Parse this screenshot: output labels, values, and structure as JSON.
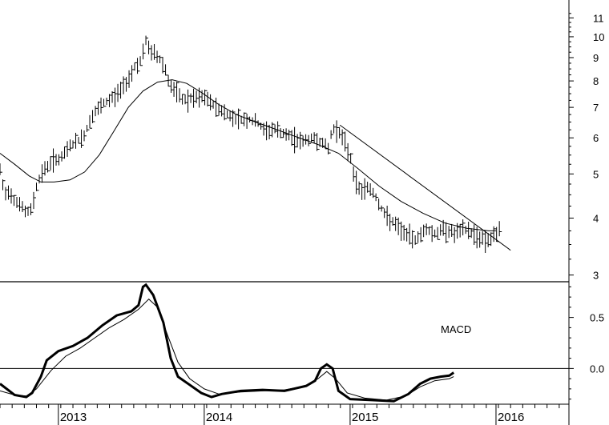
{
  "chart_data": [
    {
      "type": "line",
      "panel": "price",
      "scale": "log",
      "ylim": [
        2.9,
        11.8
      ],
      "y_ticks": [
        3,
        4,
        5,
        6,
        7,
        8,
        9,
        10,
        11
      ],
      "y_tick_labels": [
        "3",
        "4",
        "5",
        "6",
        "7",
        "8",
        "9",
        "10",
        "11"
      ],
      "x_labels": [
        "2013",
        "2014",
        "2015",
        "2016"
      ],
      "x_label_dates": [
        2013.0,
        2014.0,
        2015.0,
        2016.0
      ],
      "xlim": [
        2012.6,
        2016.5
      ],
      "colors": {
        "line": "#000000",
        "background": "#ffffff"
      },
      "series": [
        {
          "kind": "weekly-bars",
          "anchors": [
            [
              2012.6,
              5.1
            ],
            [
              2012.63,
              4.5
            ],
            [
              2012.66,
              4.6
            ],
            [
              2012.7,
              4.4
            ],
            [
              2012.74,
              4.3
            ],
            [
              2012.78,
              4.1
            ],
            [
              2012.82,
              4.2
            ],
            [
              2012.84,
              4.6
            ],
            [
              2012.88,
              5.0
            ],
            [
              2012.92,
              5.2
            ],
            [
              2012.97,
              5.4
            ],
            [
              2013.02,
              5.4
            ],
            [
              2013.08,
              5.8
            ],
            [
              2013.13,
              5.9
            ],
            [
              2013.18,
              6.1
            ],
            [
              2013.23,
              6.7
            ],
            [
              2013.28,
              7.0
            ],
            [
              2013.33,
              7.2
            ],
            [
              2013.38,
              7.4
            ],
            [
              2013.43,
              7.7
            ],
            [
              2013.48,
              8.1
            ],
            [
              2013.52,
              8.6
            ],
            [
              2013.57,
              8.9
            ],
            [
              2013.6,
              9.8
            ],
            [
              2013.63,
              9.3
            ],
            [
              2013.66,
              9.2
            ],
            [
              2013.7,
              8.9
            ],
            [
              2013.73,
              8.6
            ],
            [
              2013.76,
              7.9
            ],
            [
              2013.8,
              7.6
            ],
            [
              2013.85,
              7.3
            ],
            [
              2013.9,
              7.3
            ],
            [
              2014.0,
              7.4
            ],
            [
              2014.06,
              7.1
            ],
            [
              2014.12,
              6.9
            ],
            [
              2014.18,
              6.7
            ],
            [
              2014.25,
              6.6
            ],
            [
              2014.3,
              6.6
            ],
            [
              2014.36,
              6.5
            ],
            [
              2014.42,
              6.2
            ],
            [
              2014.48,
              6.3
            ],
            [
              2014.55,
              6.1
            ],
            [
              2014.62,
              6.0
            ],
            [
              2014.68,
              5.9
            ],
            [
              2014.74,
              6.0
            ],
            [
              2014.8,
              5.9
            ],
            [
              2014.85,
              5.7
            ],
            [
              2014.88,
              6.3
            ],
            [
              2014.91,
              6.3
            ],
            [
              2014.95,
              6.0
            ],
            [
              2015.0,
              5.5
            ],
            [
              2015.03,
              4.9
            ],
            [
              2015.07,
              4.6
            ],
            [
              2015.12,
              4.7
            ],
            [
              2015.17,
              4.5
            ],
            [
              2015.23,
              4.1
            ],
            [
              2015.3,
              3.9
            ],
            [
              2015.38,
              3.7
            ],
            [
              2015.45,
              3.6
            ],
            [
              2015.52,
              3.8
            ],
            [
              2015.58,
              3.7
            ],
            [
              2015.65,
              3.8
            ],
            [
              2015.72,
              3.7
            ],
            [
              2015.78,
              3.8
            ],
            [
              2015.85,
              3.7
            ],
            [
              2015.91,
              3.6
            ],
            [
              2015.96,
              3.6
            ],
            [
              2016.01,
              3.7
            ],
            [
              2016.03,
              3.9
            ]
          ]
        },
        {
          "kind": "moving-average-long",
          "anchors": [
            [
              2012.6,
              5.55
            ],
            [
              2012.7,
              5.25
            ],
            [
              2012.8,
              4.95
            ],
            [
              2012.88,
              4.8
            ],
            [
              2012.97,
              4.8
            ],
            [
              2013.08,
              4.85
            ],
            [
              2013.18,
              5.05
            ],
            [
              2013.28,
              5.5
            ],
            [
              2013.38,
              6.2
            ],
            [
              2013.48,
              7.0
            ],
            [
              2013.58,
              7.6
            ],
            [
              2013.68,
              7.95
            ],
            [
              2013.78,
              8.05
            ],
            [
              2013.88,
              7.9
            ],
            [
              2013.98,
              7.55
            ],
            [
              2014.1,
              7.1
            ],
            [
              2014.22,
              6.75
            ],
            [
              2014.35,
              6.5
            ],
            [
              2014.5,
              6.25
            ],
            [
              2014.62,
              6.05
            ],
            [
              2014.78,
              5.8
            ],
            [
              2014.92,
              5.55
            ],
            [
              2015.05,
              5.15
            ],
            [
              2015.2,
              4.7
            ],
            [
              2015.35,
              4.35
            ],
            [
              2015.5,
              4.1
            ],
            [
              2015.65,
              3.9
            ],
            [
              2015.8,
              3.8
            ],
            [
              2015.95,
              3.75
            ],
            [
              2016.0,
              3.75
            ]
          ]
        },
        {
          "kind": "trendline",
          "anchors": [
            [
              2014.93,
              6.4
            ],
            [
              2016.1,
              3.4
            ]
          ]
        }
      ]
    },
    {
      "type": "line",
      "panel": "indicator",
      "title": "MACD",
      "ylim": [
        -0.35,
        0.85
      ],
      "y_ticks": [
        0.0,
        0.5
      ],
      "y_tick_labels": [
        "0.0",
        "0.5"
      ],
      "xlim": [
        2012.6,
        2016.5
      ],
      "series": [
        {
          "kind": "macd-line",
          "anchors": [
            [
              2012.6,
              -0.15
            ],
            [
              2012.7,
              -0.26
            ],
            [
              2012.78,
              -0.28
            ],
            [
              2012.82,
              -0.24
            ],
            [
              2012.88,
              -0.08
            ],
            [
              2012.92,
              0.08
            ],
            [
              2013.0,
              0.17
            ],
            [
              2013.1,
              0.22
            ],
            [
              2013.2,
              0.3
            ],
            [
              2013.3,
              0.42
            ],
            [
              2013.4,
              0.52
            ],
            [
              2013.5,
              0.56
            ],
            [
              2013.55,
              0.62
            ],
            [
              2013.58,
              0.8
            ],
            [
              2013.6,
              0.82
            ],
            [
              2013.65,
              0.72
            ],
            [
              2013.72,
              0.45
            ],
            [
              2013.77,
              0.1
            ],
            [
              2013.82,
              -0.08
            ],
            [
              2013.9,
              -0.16
            ],
            [
              2013.98,
              -0.24
            ],
            [
              2014.05,
              -0.28
            ],
            [
              2014.12,
              -0.25
            ],
            [
              2014.25,
              -0.22
            ],
            [
              2014.4,
              -0.21
            ],
            [
              2014.55,
              -0.22
            ],
            [
              2014.7,
              -0.17
            ],
            [
              2014.76,
              -0.12
            ],
            [
              2014.8,
              0.0
            ],
            [
              2014.84,
              0.04
            ],
            [
              2014.88,
              0.0
            ],
            [
              2014.92,
              -0.22
            ],
            [
              2015.0,
              -0.3
            ],
            [
              2015.15,
              -0.31
            ],
            [
              2015.3,
              -0.32
            ],
            [
              2015.4,
              -0.25
            ],
            [
              2015.48,
              -0.15
            ],
            [
              2015.55,
              -0.1
            ],
            [
              2015.62,
              -0.08
            ],
            [
              2015.68,
              -0.07
            ],
            [
              2015.71,
              -0.04
            ]
          ]
        },
        {
          "kind": "signal-line",
          "anchors": [
            [
              2012.6,
              -0.22
            ],
            [
              2012.7,
              -0.26
            ],
            [
              2012.78,
              -0.27
            ],
            [
              2012.85,
              -0.2
            ],
            [
              2012.95,
              -0.02
            ],
            [
              2013.05,
              0.12
            ],
            [
              2013.15,
              0.2
            ],
            [
              2013.25,
              0.3
            ],
            [
              2013.35,
              0.4
            ],
            [
              2013.45,
              0.48
            ],
            [
              2013.55,
              0.58
            ],
            [
              2013.62,
              0.68
            ],
            [
              2013.68,
              0.6
            ],
            [
              2013.75,
              0.32
            ],
            [
              2013.82,
              0.06
            ],
            [
              2013.9,
              -0.1
            ],
            [
              2014.0,
              -0.2
            ],
            [
              2014.1,
              -0.25
            ],
            [
              2014.25,
              -0.23
            ],
            [
              2014.4,
              -0.22
            ],
            [
              2014.55,
              -0.21
            ],
            [
              2014.7,
              -0.17
            ],
            [
              2014.78,
              -0.1
            ],
            [
              2014.84,
              -0.03
            ],
            [
              2014.9,
              -0.1
            ],
            [
              2014.98,
              -0.24
            ],
            [
              2015.1,
              -0.29
            ],
            [
              2015.25,
              -0.31
            ],
            [
              2015.38,
              -0.27
            ],
            [
              2015.48,
              -0.18
            ],
            [
              2015.58,
              -0.12
            ],
            [
              2015.68,
              -0.1
            ],
            [
              2015.71,
              -0.08
            ]
          ]
        }
      ]
    }
  ]
}
